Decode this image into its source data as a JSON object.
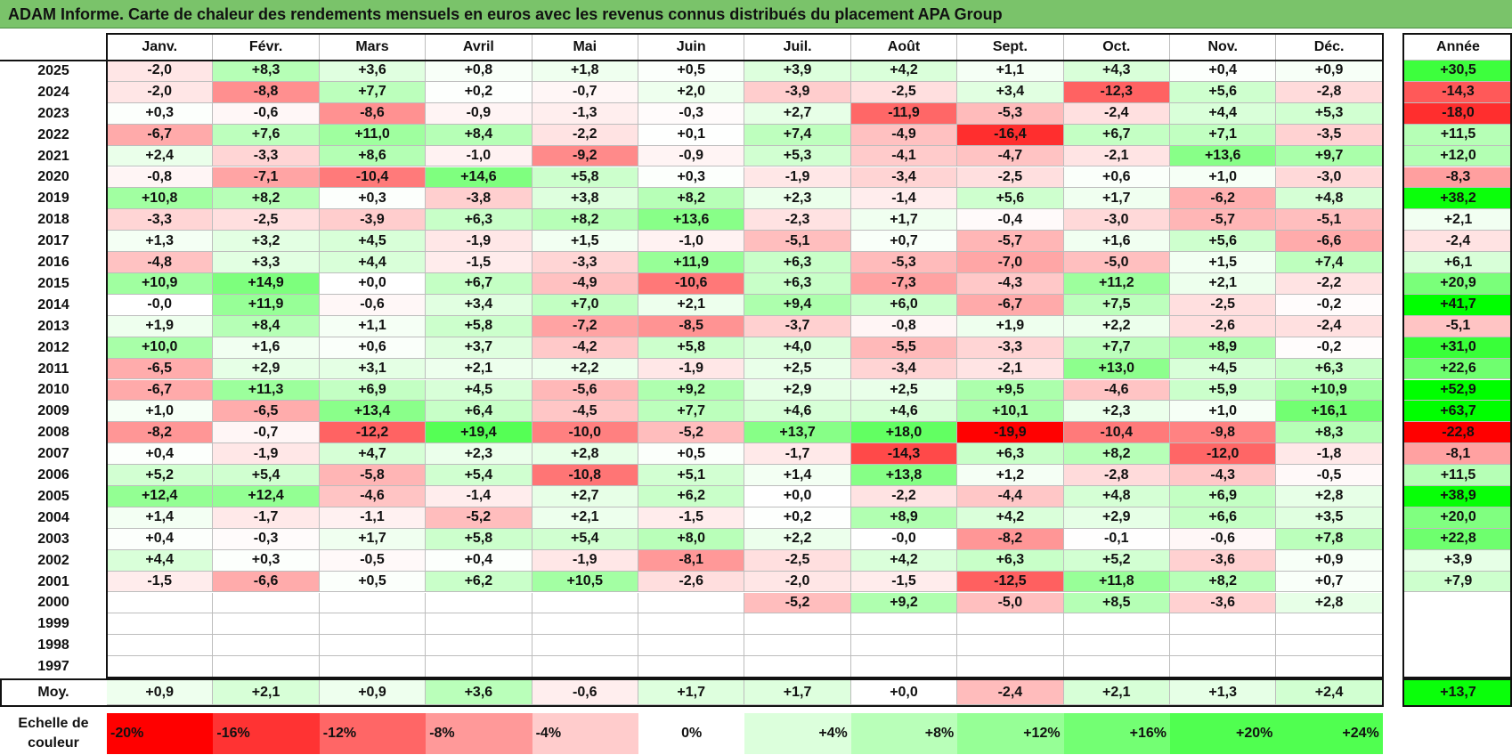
{
  "title": "ADAM Informe. Carte de chaleur des rendements mensuels en euros avec les revenus connus distribués du placement APA Group",
  "chart_data": {
    "type": "heatmap",
    "title": "ADAM Informe. Carte de chaleur des rendements mensuels en euros avec les revenus connus distribués du placement APA Group",
    "columns": [
      "Janv.",
      "Févr.",
      "Mars",
      "Avril",
      "Mai",
      "Juin",
      "Juil.",
      "Août",
      "Sept.",
      "Oct.",
      "Nov.",
      "Déc."
    ],
    "year_header": "Année",
    "rows": [
      {
        "year": "2025",
        "values": [
          "-2,0",
          "+8,3",
          "+3,6",
          "+0,8",
          "+1,8",
          "+0,5",
          "+3,9",
          "+4,2",
          "+1,1",
          "+4,3",
          "+0,4",
          "+0,9"
        ],
        "annual": "+30,5"
      },
      {
        "year": "2024",
        "values": [
          "-2,0",
          "-8,8",
          "+7,7",
          "+0,2",
          "-0,7",
          "+2,0",
          "-3,9",
          "-2,5",
          "+3,4",
          "-12,3",
          "+5,6",
          "-2,8"
        ],
        "annual": "-14,3"
      },
      {
        "year": "2023",
        "values": [
          "+0,3",
          "-0,6",
          "-8,6",
          "-0,9",
          "-1,3",
          "-0,3",
          "+2,7",
          "-11,9",
          "-5,3",
          "-2,4",
          "+4,4",
          "+5,3"
        ],
        "annual": "-18,0"
      },
      {
        "year": "2022",
        "values": [
          "-6,7",
          "+7,6",
          "+11,0",
          "+8,4",
          "-2,2",
          "+0,1",
          "+7,4",
          "-4,9",
          "-16,4",
          "+6,7",
          "+7,1",
          "-3,5"
        ],
        "annual": "+11,5"
      },
      {
        "year": "2021",
        "values": [
          "+2,4",
          "-3,3",
          "+8,6",
          "-1,0",
          "-9,2",
          "-0,9",
          "+5,3",
          "-4,1",
          "-4,7",
          "-2,1",
          "+13,6",
          "+9,7"
        ],
        "annual": "+12,0"
      },
      {
        "year": "2020",
        "values": [
          "-0,8",
          "-7,1",
          "-10,4",
          "+14,6",
          "+5,8",
          "+0,3",
          "-1,9",
          "-3,4",
          "-2,5",
          "+0,6",
          "+1,0",
          "-3,0"
        ],
        "annual": "-8,3"
      },
      {
        "year": "2019",
        "values": [
          "+10,8",
          "+8,2",
          "+0,3",
          "-3,8",
          "+3,8",
          "+8,2",
          "+2,3",
          "-1,4",
          "+5,6",
          "+1,7",
          "-6,2",
          "+4,8"
        ],
        "annual": "+38,2"
      },
      {
        "year": "2018",
        "values": [
          "-3,3",
          "-2,5",
          "-3,9",
          "+6,3",
          "+8,2",
          "+13,6",
          "-2,3",
          "+1,7",
          "-0,4",
          "-3,0",
          "-5,7",
          "-5,1"
        ],
        "annual": "+2,1"
      },
      {
        "year": "2017",
        "values": [
          "+1,3",
          "+3,2",
          "+4,5",
          "-1,9",
          "+1,5",
          "-1,0",
          "-5,1",
          "+0,7",
          "-5,7",
          "+1,6",
          "+5,6",
          "-6,6"
        ],
        "annual": "-2,4"
      },
      {
        "year": "2016",
        "values": [
          "-4,8",
          "+3,3",
          "+4,4",
          "-1,5",
          "-3,3",
          "+11,9",
          "+6,3",
          "-5,3",
          "-7,0",
          "-5,0",
          "+1,5",
          "+7,4"
        ],
        "annual": "+6,1"
      },
      {
        "year": "2015",
        "values": [
          "+10,9",
          "+14,9",
          "+0,0",
          "+6,7",
          "-4,9",
          "-10,6",
          "+6,3",
          "-7,3",
          "-4,3",
          "+11,2",
          "+2,1",
          "-2,2"
        ],
        "annual": "+20,9"
      },
      {
        "year": "2014",
        "values": [
          "-0,0",
          "+11,9",
          "-0,6",
          "+3,4",
          "+7,0",
          "+2,1",
          "+9,4",
          "+6,0",
          "-6,7",
          "+7,5",
          "-2,5",
          "-0,2"
        ],
        "annual": "+41,7"
      },
      {
        "year": "2013",
        "values": [
          "+1,9",
          "+8,4",
          "+1,1",
          "+5,8",
          "-7,2",
          "-8,5",
          "-3,7",
          "-0,8",
          "+1,9",
          "+2,2",
          "-2,6",
          "-2,4"
        ],
        "annual": "-5,1"
      },
      {
        "year": "2012",
        "values": [
          "+10,0",
          "+1,6",
          "+0,6",
          "+3,7",
          "-4,2",
          "+5,8",
          "+4,0",
          "-5,5",
          "-3,3",
          "+7,7",
          "+8,9",
          "-0,2"
        ],
        "annual": "+31,0"
      },
      {
        "year": "2011",
        "values": [
          "-6,5",
          "+2,9",
          "+3,1",
          "+2,1",
          "+2,2",
          "-1,9",
          "+2,5",
          "-3,4",
          "-2,1",
          "+13,0",
          "+4,5",
          "+6,3"
        ],
        "annual": "+22,6"
      },
      {
        "year": "2010",
        "values": [
          "-6,7",
          "+11,3",
          "+6,9",
          "+4,5",
          "-5,6",
          "+9,2",
          "+2,9",
          "+2,5",
          "+9,5",
          "-4,6",
          "+5,9",
          "+10,9"
        ],
        "annual": "+52,9"
      },
      {
        "year": "2009",
        "values": [
          "+1,0",
          "-6,5",
          "+13,4",
          "+6,4",
          "-4,5",
          "+7,7",
          "+4,6",
          "+4,6",
          "+10,1",
          "+2,3",
          "+1,0",
          "+16,1"
        ],
        "annual": "+63,7"
      },
      {
        "year": "2008",
        "values": [
          "-8,2",
          "-0,7",
          "-12,2",
          "+19,4",
          "-10,0",
          "-5,2",
          "+13,7",
          "+18,0",
          "-19,9",
          "-10,4",
          "-9,8",
          "+8,3"
        ],
        "annual": "-22,8"
      },
      {
        "year": "2007",
        "values": [
          "+0,4",
          "-1,9",
          "+4,7",
          "+2,3",
          "+2,8",
          "+0,5",
          "-1,7",
          "-14,3",
          "+6,3",
          "+8,2",
          "-12,0",
          "-1,8"
        ],
        "annual": "-8,1"
      },
      {
        "year": "2006",
        "values": [
          "+5,2",
          "+5,4",
          "-5,8",
          "+5,4",
          "-10,8",
          "+5,1",
          "+1,4",
          "+13,8",
          "+1,2",
          "-2,8",
          "-4,3",
          "-0,5"
        ],
        "annual": "+11,5"
      },
      {
        "year": "2005",
        "values": [
          "+12,4",
          "+12,4",
          "-4,6",
          "-1,4",
          "+2,7",
          "+6,2",
          "+0,0",
          "-2,2",
          "-4,4",
          "+4,8",
          "+6,9",
          "+2,8"
        ],
        "annual": "+38,9"
      },
      {
        "year": "2004",
        "values": [
          "+1,4",
          "-1,7",
          "-1,1",
          "-5,2",
          "+2,1",
          "-1,5",
          "+0,2",
          "+8,9",
          "+4,2",
          "+2,9",
          "+6,6",
          "+3,5"
        ],
        "annual": "+20,0"
      },
      {
        "year": "2003",
        "values": [
          "+0,4",
          "-0,3",
          "+1,7",
          "+5,8",
          "+5,4",
          "+8,0",
          "+2,2",
          "-0,0",
          "-8,2",
          "-0,1",
          "-0,6",
          "+7,8"
        ],
        "annual": "+22,8"
      },
      {
        "year": "2002",
        "values": [
          "+4,4",
          "+0,3",
          "-0,5",
          "+0,4",
          "-1,9",
          "-8,1",
          "-2,5",
          "+4,2",
          "+6,3",
          "+5,2",
          "-3,6",
          "+0,9"
        ],
        "annual": "+3,9"
      },
      {
        "year": "2001",
        "values": [
          "-1,5",
          "-6,6",
          "+0,5",
          "+6,2",
          "+10,5",
          "-2,6",
          "-2,0",
          "-1,5",
          "-12,5",
          "+11,8",
          "+8,2",
          "+0,7"
        ],
        "annual": "+7,9"
      },
      {
        "year": "2000",
        "values": [
          "",
          "",
          "",
          "",
          "",
          "",
          "-5,2",
          "+9,2",
          "-5,0",
          "+8,5",
          "-3,6",
          "+2,8"
        ],
        "annual": ""
      },
      {
        "year": "1999",
        "values": [
          "",
          "",
          "",
          "",
          "",
          "",
          "",
          "",
          "",
          "",
          "",
          ""
        ],
        "annual": ""
      },
      {
        "year": "1998",
        "values": [
          "",
          "",
          "",
          "",
          "",
          "",
          "",
          "",
          "",
          "",
          "",
          ""
        ],
        "annual": ""
      },
      {
        "year": "1997",
        "values": [
          "",
          "",
          "",
          "",
          "",
          "",
          "",
          "",
          "",
          "",
          "",
          ""
        ],
        "annual": ""
      }
    ],
    "average_label": "Moy.",
    "averages": [
      "+0,9",
      "+2,1",
      "+0,9",
      "+3,6",
      "-0,6",
      "+1,7",
      "+1,7",
      "+0,0",
      "-2,4",
      "+2,1",
      "+1,3",
      "+2,4"
    ],
    "average_annual": "+13,7",
    "scale_label_line1": "Echelle de",
    "scale_label_line2": "couleur",
    "scale": [
      {
        "label": "-20%",
        "value": -20
      },
      {
        "label": "-16%",
        "value": -16
      },
      {
        "label": "-12%",
        "value": -12
      },
      {
        "label": "-8%",
        "value": -8
      },
      {
        "label": "-4%",
        "value": -4
      },
      {
        "label": "0%",
        "value": 0
      },
      {
        "label": "+4%",
        "value": 4
      },
      {
        "label": "+8%",
        "value": 8
      },
      {
        "label": "+12%",
        "value": 12
      },
      {
        "label": "+16%",
        "value": 16
      },
      {
        "label": "+20%",
        "value": 20
      },
      {
        "label": "+24%",
        "value": 24
      }
    ]
  }
}
